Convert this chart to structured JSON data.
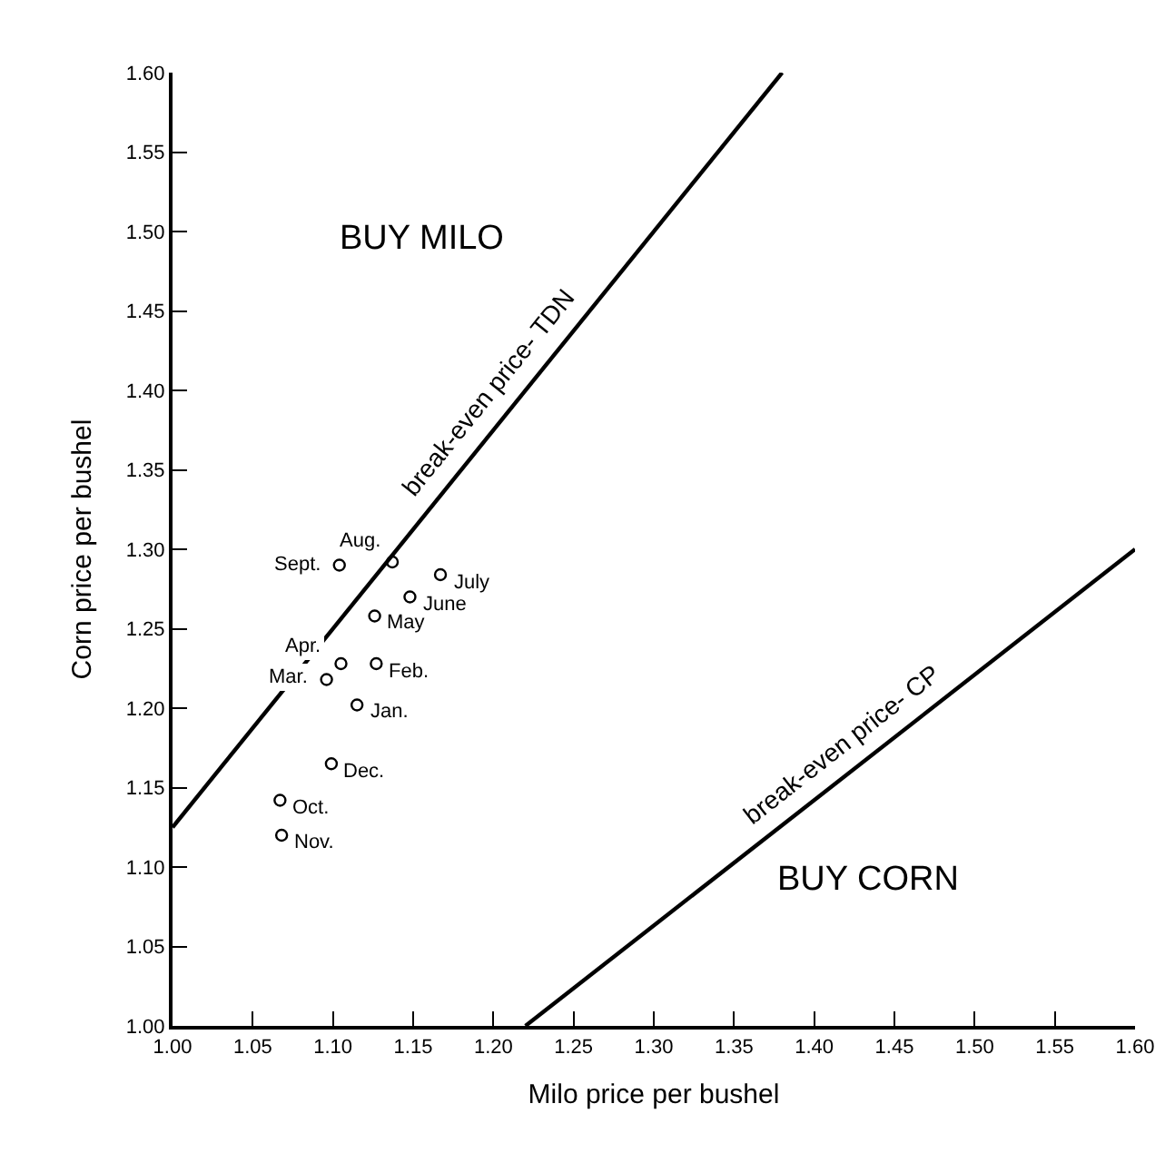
{
  "chart_data": {
    "type": "scatter",
    "xlabel": "Milo price per bushel",
    "ylabel": "Corn price per bushel",
    "xlim": [
      1.0,
      1.6
    ],
    "ylim": [
      1.0,
      1.6
    ],
    "xticks": [
      {
        "value": 1.0,
        "label": "1.00"
      },
      {
        "value": 1.05,
        "label": "1.05"
      },
      {
        "value": 1.1,
        "label": "1.10"
      },
      {
        "value": 1.15,
        "label": "1.15"
      },
      {
        "value": 1.2,
        "label": "1.20"
      },
      {
        "value": 1.25,
        "label": "1.25"
      },
      {
        "value": 1.3,
        "label": "1.30"
      },
      {
        "value": 1.35,
        "label": "1.35"
      },
      {
        "value": 1.4,
        "label": "1.40"
      },
      {
        "value": 1.45,
        "label": "1.45"
      },
      {
        "value": 1.5,
        "label": "1.50"
      },
      {
        "value": 1.55,
        "label": "1.55"
      },
      {
        "value": 1.6,
        "label": "1.60"
      }
    ],
    "yticks": [
      {
        "value": 1.0,
        "label": "1.00"
      },
      {
        "value": 1.05,
        "label": "1.05"
      },
      {
        "value": 1.1,
        "label": "1.10"
      },
      {
        "value": 1.15,
        "label": "1.15"
      },
      {
        "value": 1.2,
        "label": "1.20"
      },
      {
        "value": 1.25,
        "label": "1.25"
      },
      {
        "value": 1.3,
        "label": "1.30"
      },
      {
        "value": 1.35,
        "label": "1.35"
      },
      {
        "value": 1.4,
        "label": "1.40"
      },
      {
        "value": 1.45,
        "label": "1.45"
      },
      {
        "value": 1.5,
        "label": "1.50"
      },
      {
        "value": 1.55,
        "label": "1.55"
      },
      {
        "value": 1.6,
        "label": "1.60"
      }
    ],
    "legend": false,
    "series": [
      {
        "marker": "circle",
        "color": "#000000",
        "x": [
          1.104,
          1.137,
          1.167,
          1.148,
          1.126,
          1.105,
          1.127,
          1.096,
          1.115,
          1.099,
          1.067,
          1.068
        ],
        "values": [
          1.29,
          1.292,
          1.284,
          1.27,
          1.258,
          1.228,
          1.228,
          1.218,
          1.202,
          1.165,
          1.142,
          1.12
        ]
      },
      {
        "type": "line",
        "name": "break-even price- TDN",
        "color": "#000000",
        "line_style": "solid",
        "x": [
          1.0,
          1.38
        ],
        "values": [
          1.125,
          1.6
        ]
      },
      {
        "type": "line",
        "name": "break-even price- CP",
        "color": "#000000",
        "line_style": "solid",
        "x": [
          1.22,
          1.6
        ],
        "values": [
          1.0,
          1.3
        ]
      }
    ],
    "annotations": [
      "BUY MILO",
      "BUY CORN",
      {
        "text": "Sept.",
        "x": 1.104,
        "y": 1.29
      },
      {
        "text": "Aug.",
        "x": 1.137,
        "y": 1.292
      },
      {
        "text": "July",
        "x": 1.167,
        "y": 1.284
      },
      {
        "text": "June",
        "x": 1.148,
        "y": 1.27
      },
      {
        "text": "May",
        "x": 1.126,
        "y": 1.258
      },
      {
        "text": "Apr.",
        "x": 1.105,
        "y": 1.228
      },
      {
        "text": "Feb.",
        "x": 1.127,
        "y": 1.228
      },
      {
        "text": "Mar.",
        "x": 1.096,
        "y": 1.218
      },
      {
        "text": "Jan.",
        "x": 1.115,
        "y": 1.202
      },
      {
        "text": "Dec.",
        "x": 1.099,
        "y": 1.165
      },
      {
        "text": "Oct.",
        "x": 1.067,
        "y": 1.142
      },
      {
        "text": "Nov.",
        "x": 1.068,
        "y": 1.12
      }
    ]
  }
}
